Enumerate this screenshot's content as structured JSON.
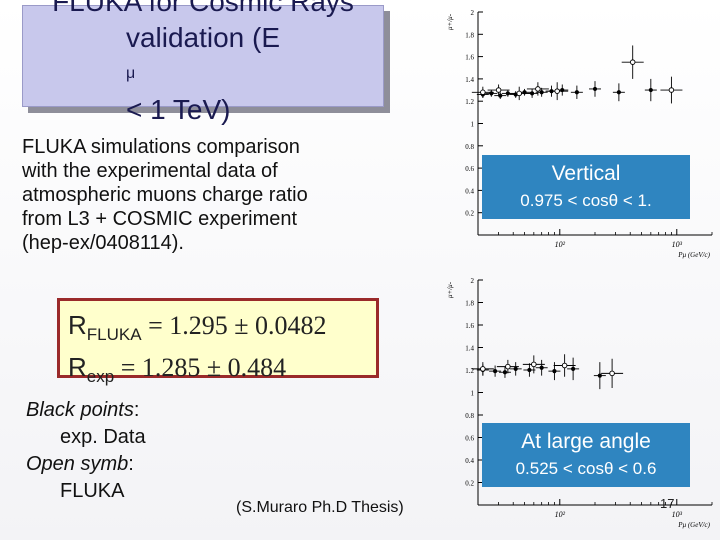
{
  "slide": {
    "title_line1": "FLUKA for Cosmic Rays",
    "title_line2_pre": "validation (E",
    "title_line2_sub": "μ",
    "title_line2_post": " < 1 TeV)",
    "intro_lines": [
      "FLUKA simulations comparison",
      "with the experimental data of",
      "atmospheric muons charge ratio",
      "from L3 + COSMIC experiment",
      "(hep-ex/0408114)."
    ],
    "r_fluka_sym": "R",
    "r_fluka_sub": "FLUKA",
    "r_fluka_val": " = 1.295 ± 0.0482",
    "r_exp_sym": "R",
    "r_exp_sub": "exp",
    "r_exp_val": " = 1.285 ± 0.484",
    "legend_black_label": "Black points",
    "legend_black_colon": ":",
    "legend_black_text": "exp. Data",
    "legend_open_label": "Open symb",
    "legend_open_colon": ":",
    "legend_open_text": "FLUKA",
    "citation": "(S.Muraro Ph.D Thesis)",
    "page_number": "17",
    "label_color": "#2f85c0"
  },
  "chart_data": [
    {
      "type": "scatter",
      "title": "",
      "label_title": "Vertical",
      "label_range": "0.975 < cosθ < 1.",
      "ylabel": "μ+/μ-",
      "xlabel": "Pμ (GeV/c)",
      "xscale": "log",
      "ylim": [
        0,
        2
      ],
      "xlim": [
        20,
        2000
      ],
      "y_ticks": [
        "0.2",
        "0.4",
        "0.6",
        "0.8",
        "1",
        "1.2",
        "1.4",
        "1.6",
        "1.8",
        "2"
      ],
      "x_ticks": [
        "10²",
        "10³"
      ],
      "grid": false,
      "series": [
        {
          "marker": "filled",
          "points": [
            {
              "x": 22,
              "y": 1.26,
              "dy": 0.03
            },
            {
              "x": 26,
              "y": 1.27,
              "dy": 0.03
            },
            {
              "x": 31,
              "y": 1.25,
              "dy": 0.03
            },
            {
              "x": 36,
              "y": 1.27,
              "dy": 0.03
            },
            {
              "x": 42,
              "y": 1.26,
              "dy": 0.03
            },
            {
              "x": 50,
              "y": 1.28,
              "dy": 0.03
            },
            {
              "x": 58,
              "y": 1.27,
              "dy": 0.04
            },
            {
              "x": 70,
              "y": 1.28,
              "dy": 0.04
            },
            {
              "x": 85,
              "y": 1.29,
              "dy": 0.05
            },
            {
              "x": 105,
              "y": 1.3,
              "dy": 0.05
            },
            {
              "x": 140,
              "y": 1.28,
              "dy": 0.06
            },
            {
              "x": 200,
              "y": 1.31,
              "dy": 0.07
            },
            {
              "x": 320,
              "y": 1.28,
              "dy": 0.08
            },
            {
              "x": 600,
              "y": 1.3,
              "dy": 0.1
            }
          ]
        },
        {
          "marker": "open",
          "points": [
            {
              "x": 22,
              "y": 1.28,
              "dy": 0.05
            },
            {
              "x": 30,
              "y": 1.3,
              "dy": 0.05
            },
            {
              "x": 45,
              "y": 1.27,
              "dy": 0.06
            },
            {
              "x": 65,
              "y": 1.31,
              "dy": 0.06
            },
            {
              "x": 95,
              "y": 1.29,
              "dy": 0.08
            },
            {
              "x": 420,
              "y": 1.55,
              "dy": 0.15
            },
            {
              "x": 900,
              "y": 1.3,
              "dy": 0.12
            }
          ]
        }
      ]
    },
    {
      "type": "scatter",
      "title": "",
      "label_title": "At large angle",
      "label_range": "0.525 < cosθ < 0.6",
      "ylabel": "μ+/μ-",
      "xlabel": "Pμ (GeV/c)",
      "xscale": "log",
      "ylim": [
        0,
        2
      ],
      "xlim": [
        20,
        2000
      ],
      "y_ticks": [
        "0.2",
        "0.4",
        "0.6",
        "0.8",
        "1",
        "1.2",
        "1.4",
        "1.6",
        "1.8",
        "2"
      ],
      "x_ticks": [
        "10²",
        "10³"
      ],
      "grid": false,
      "series": [
        {
          "marker": "filled",
          "points": [
            {
              "x": 22,
              "y": 1.2,
              "dy": 0.05
            },
            {
              "x": 28,
              "y": 1.19,
              "dy": 0.05
            },
            {
              "x": 34,
              "y": 1.18,
              "dy": 0.05
            },
            {
              "x": 42,
              "y": 1.21,
              "dy": 0.06
            },
            {
              "x": 55,
              "y": 1.2,
              "dy": 0.06
            },
            {
              "x": 70,
              "y": 1.22,
              "dy": 0.07
            },
            {
              "x": 90,
              "y": 1.19,
              "dy": 0.08
            },
            {
              "x": 130,
              "y": 1.21,
              "dy": 0.1
            },
            {
              "x": 220,
              "y": 1.15,
              "dy": 0.12
            }
          ]
        },
        {
          "marker": "open",
          "points": [
            {
              "x": 22,
              "y": 1.21,
              "dy": 0.06
            },
            {
              "x": 36,
              "y": 1.23,
              "dy": 0.06
            },
            {
              "x": 60,
              "y": 1.25,
              "dy": 0.08
            },
            {
              "x": 110,
              "y": 1.24,
              "dy": 0.1
            },
            {
              "x": 280,
              "y": 1.17,
              "dy": 0.13
            }
          ]
        }
      ]
    }
  ]
}
